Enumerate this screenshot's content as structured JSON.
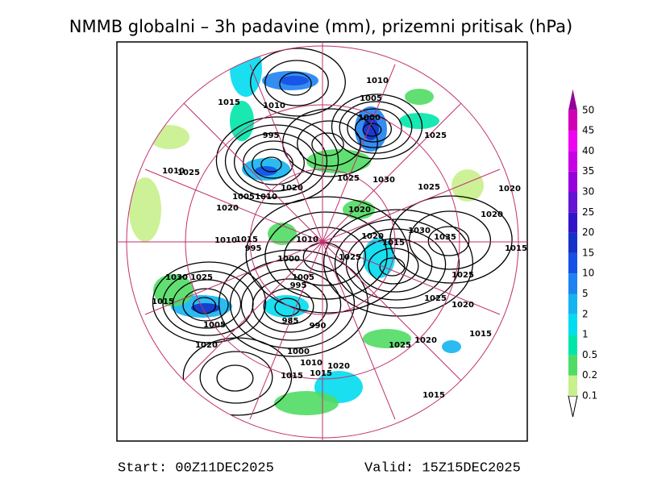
{
  "title": "NMMB globalni – 3h padavine (mm), prizemni pritisak (hPa)",
  "map": {
    "isobar_labels": [
      1010,
      1015,
      1010,
      1005,
      1000,
      995,
      1025,
      1025,
      1010,
      1025,
      1030,
      1020,
      1005,
      1010,
      1025,
      1020,
      1020,
      1020,
      1020,
      1030,
      1020,
      1015,
      1035,
      1010,
      1010,
      1015,
      995,
      1000,
      1025,
      1015,
      1030,
      1025,
      1005,
      995,
      1025,
      1015,
      1025,
      1020,
      1005,
      985,
      990,
      1015,
      1020,
      1025,
      1020,
      1000,
      1010,
      1020,
      1015,
      1015,
      1015
    ]
  },
  "colorbar": {
    "levels": [
      0.1,
      0.2,
      0.5,
      1,
      2,
      5,
      10,
      15,
      20,
      25,
      30,
      35,
      40,
      45,
      50
    ],
    "colors": [
      "#c8f08c",
      "#50dc64",
      "#00e6aa",
      "#00dcf0",
      "#14b4f0",
      "#1e82f0",
      "#1450e6",
      "#1432c8",
      "#3214c8",
      "#6414d2",
      "#9600dc",
      "#c800e6",
      "#f000f0",
      "#d200b4",
      "#960096"
    ]
  },
  "footer": {
    "start": "Start: 00Z11DEC2025",
    "valid": "Valid: 15Z15DEC2025"
  }
}
